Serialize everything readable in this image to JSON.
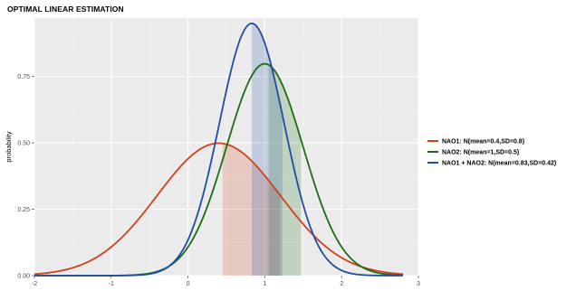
{
  "chart_data": {
    "type": "line",
    "title": "OPTIMAL LINEAR ESTIMATION",
    "xlabel": "",
    "ylabel": "probability",
    "xlim": [
      -2,
      3
    ],
    "ylim": [
      0,
      0.97
    ],
    "x_ticks": [
      -2,
      -1,
      0,
      1,
      2,
      3
    ],
    "x_tick_labels": [
      "-2",
      "-1",
      "0",
      "1",
      "2",
      "3"
    ],
    "y_ticks": [
      0.0,
      0.25,
      0.5,
      0.75
    ],
    "y_tick_labels": [
      "0.00",
      "0.25",
      "0.50",
      "0.75"
    ],
    "grid": true,
    "legend_position": "right",
    "x_range": [
      -2.0,
      2.8
    ],
    "series": [
      {
        "name": "NAO1: N(mean=0.4,SD=0.8)",
        "mean": 0.4,
        "sd": 0.8,
        "color": "#d2401b",
        "shade_from": 0.45,
        "shade_to": 1.2
      },
      {
        "name": "NAO2: N(mean=1,SD=0.5)",
        "mean": 1.0,
        "sd": 0.5,
        "color": "#1a6e12",
        "shade_from": 1.05,
        "shade_to": 1.47
      },
      {
        "name": "NAO1 + NAO2: N(mean=0.83,SD=0.42)",
        "mean": 0.83,
        "sd": 0.42,
        "color": "#1f4ea0",
        "shade_from": 0.83,
        "shade_to": 1.23
      }
    ]
  }
}
